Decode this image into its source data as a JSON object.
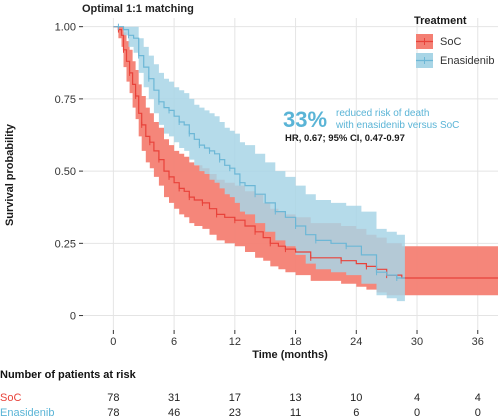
{
  "chart_data": {
    "type": "line",
    "title": "Optimal 1:1 matching",
    "xlabel": "Time (months)",
    "ylabel": "Survival probability",
    "xlim": [
      -3,
      38
    ],
    "ylim": [
      -0.05,
      1.03
    ],
    "xticks": [
      0,
      6,
      12,
      18,
      24,
      30,
      36
    ],
    "yticks": [
      0,
      0.25,
      0.5,
      0.75,
      1.0
    ],
    "ytick_labels": [
      "0",
      "0.25",
      "0.50",
      "0.75",
      "1.00"
    ],
    "grid": true,
    "legend": {
      "title": "Treatment",
      "position": "top-right",
      "entries": [
        "SoC",
        "Enasidenib"
      ]
    },
    "series": [
      {
        "name": "SoC",
        "color": "#e8423a",
        "band_color": "#f47f73",
        "x": [
          0,
          0.5,
          0.8,
          1.0,
          1.3,
          1.6,
          1.9,
          2.2,
          2.5,
          2.8,
          3.2,
          3.6,
          4.0,
          4.5,
          5.0,
          5.5,
          6.0,
          6.5,
          7.0,
          7.5,
          8.0,
          8.8,
          9.5,
          10.2,
          11.0,
          12.0,
          13.0,
          14.0,
          14.8,
          15.5,
          16.3,
          17.0,
          18.0,
          19.5,
          21.0,
          22.5,
          24.0,
          25.0,
          26.0,
          27.0,
          28.5,
          38.0
        ],
        "y": [
          1.0,
          0.99,
          0.97,
          0.92,
          0.88,
          0.84,
          0.8,
          0.76,
          0.7,
          0.66,
          0.62,
          0.6,
          0.57,
          0.54,
          0.5,
          0.48,
          0.46,
          0.44,
          0.43,
          0.41,
          0.4,
          0.39,
          0.37,
          0.35,
          0.34,
          0.33,
          0.31,
          0.29,
          0.27,
          0.25,
          0.24,
          0.23,
          0.22,
          0.2,
          0.2,
          0.19,
          0.18,
          0.17,
          0.16,
          0.14,
          0.13,
          0.13
        ],
        "lower": [
          1.0,
          0.96,
          0.93,
          0.86,
          0.81,
          0.77,
          0.72,
          0.68,
          0.62,
          0.57,
          0.53,
          0.51,
          0.48,
          0.45,
          0.41,
          0.39,
          0.37,
          0.35,
          0.34,
          0.32,
          0.31,
          0.3,
          0.28,
          0.26,
          0.25,
          0.24,
          0.22,
          0.2,
          0.19,
          0.17,
          0.16,
          0.15,
          0.14,
          0.12,
          0.12,
          0.11,
          0.1,
          0.09,
          0.08,
          0.07,
          0.07,
          0.07
        ],
        "upper": [
          1.0,
          1.0,
          1.0,
          0.98,
          0.95,
          0.92,
          0.88,
          0.85,
          0.8,
          0.76,
          0.72,
          0.7,
          0.67,
          0.65,
          0.61,
          0.59,
          0.57,
          0.56,
          0.55,
          0.53,
          0.52,
          0.51,
          0.49,
          0.47,
          0.46,
          0.45,
          0.43,
          0.42,
          0.39,
          0.37,
          0.36,
          0.35,
          0.34,
          0.32,
          0.32,
          0.31,
          0.3,
          0.28,
          0.27,
          0.25,
          0.24,
          0.24
        ]
      },
      {
        "name": "Enasidenib",
        "color": "#6cb7d6",
        "band_color": "#a8d5e6",
        "x": [
          0,
          0.5,
          1.0,
          1.5,
          2.0,
          2.5,
          3.0,
          3.5,
          4.0,
          4.5,
          5.0,
          5.5,
          6.0,
          6.5,
          7.0,
          7.5,
          8.0,
          8.5,
          9.0,
          9.5,
          10.0,
          10.5,
          11.0,
          11.5,
          12.0,
          12.5,
          13.0,
          14.0,
          15.0,
          16.0,
          17.0,
          18.0,
          19.0,
          20.0,
          21.5,
          23.0,
          24.5,
          26.0,
          27.0,
          28.0,
          28.8
        ],
        "y": [
          1.0,
          1.0,
          0.99,
          0.97,
          0.96,
          0.9,
          0.86,
          0.82,
          0.78,
          0.74,
          0.72,
          0.71,
          0.69,
          0.67,
          0.66,
          0.63,
          0.61,
          0.59,
          0.58,
          0.57,
          0.56,
          0.54,
          0.52,
          0.51,
          0.49,
          0.46,
          0.45,
          0.42,
          0.39,
          0.36,
          0.34,
          0.31,
          0.28,
          0.26,
          0.25,
          0.24,
          0.21,
          0.15,
          0.14,
          0.13,
          0.13
        ],
        "lower": [
          1.0,
          1.0,
          0.97,
          0.93,
          0.91,
          0.84,
          0.79,
          0.75,
          0.7,
          0.66,
          0.63,
          0.62,
          0.6,
          0.58,
          0.57,
          0.54,
          0.52,
          0.5,
          0.49,
          0.47,
          0.46,
          0.44,
          0.42,
          0.41,
          0.39,
          0.36,
          0.35,
          0.32,
          0.29,
          0.26,
          0.24,
          0.21,
          0.18,
          0.16,
          0.15,
          0.14,
          0.11,
          0.07,
          0.06,
          0.05,
          0.05
        ],
        "upper": [
          1.0,
          1.0,
          1.0,
          1.0,
          1.0,
          0.96,
          0.93,
          0.9,
          0.87,
          0.84,
          0.82,
          0.81,
          0.79,
          0.78,
          0.77,
          0.75,
          0.73,
          0.72,
          0.71,
          0.7,
          0.69,
          0.67,
          0.65,
          0.64,
          0.63,
          0.6,
          0.59,
          0.56,
          0.53,
          0.5,
          0.48,
          0.45,
          0.42,
          0.4,
          0.39,
          0.38,
          0.36,
          0.3,
          0.29,
          0.28,
          0.28
        ]
      }
    ],
    "annotation": {
      "big": "33%",
      "line1": "reduced risk of death",
      "line2": "with enasidenib versus SoC",
      "hr": "HR, 0.67; 95% CI, 0.47-0.97",
      "color": "#5ab4d6"
    }
  },
  "risk_table": {
    "title": "Number of patients at risk",
    "columns": [
      0,
      6,
      12,
      18,
      24,
      30,
      36
    ],
    "rows": [
      {
        "label": "SoC",
        "color": "#e8423a",
        "values": [
          "78",
          "31",
          "17",
          "13",
          "10",
          "4",
          "4"
        ]
      },
      {
        "label": "Enasidenib",
        "color": "#5ab4d6",
        "values": [
          "78",
          "46",
          "23",
          "11",
          "6",
          "0",
          "0"
        ]
      }
    ]
  }
}
